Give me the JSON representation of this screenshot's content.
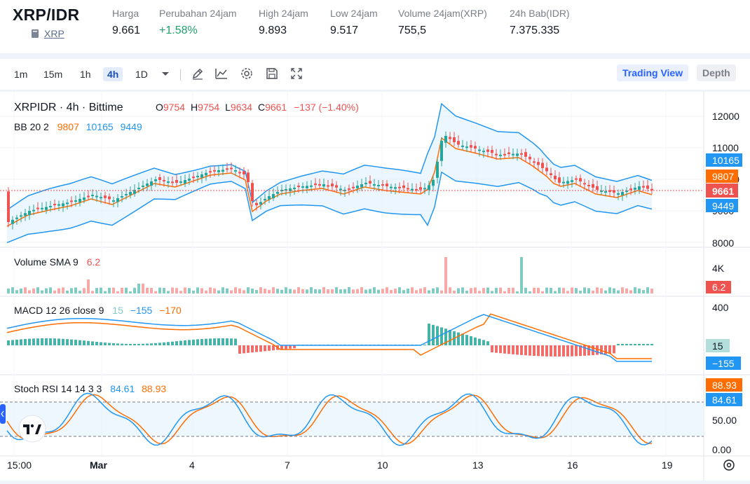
{
  "pair": "XRP/IDR",
  "coin_link": "XRP",
  "stats": [
    {
      "label": "Harga",
      "value": "9.661",
      "color": "default"
    },
    {
      "label": "Perubahan 24jam",
      "value": "+1.58%",
      "color": "green"
    },
    {
      "label": "High 24jam",
      "value": "9.893",
      "color": "default"
    },
    {
      "label": "Low 24jam",
      "value": "9.517",
      "color": "default"
    },
    {
      "label": "Volume 24jam(XRP)",
      "value": "755,5",
      "color": "default"
    },
    {
      "label": "24h Bab(IDR)",
      "value": "7.375.335",
      "color": "default"
    }
  ],
  "toolbar": {
    "timeframes": [
      "1m",
      "15m",
      "1h",
      "4h",
      "1D"
    ],
    "active_timeframe": "4h",
    "icons": [
      "pencil-icon",
      "line-chart-icon",
      "gear-icon",
      "save-icon",
      "fullscreen-icon"
    ],
    "views": [
      "Trading View",
      "Depth"
    ],
    "active_view": "Trading View"
  },
  "chart": {
    "title": "XRPIDR · 4h · Bittime",
    "ohlc": {
      "o_label": "O",
      "o": "9754",
      "h_label": "H",
      "h": "9754",
      "l_label": "L",
      "l": "9634",
      "c_label": "C",
      "c": "9661",
      "change": "−137 (−1.40%)"
    },
    "bb": {
      "label": "BB 20 2",
      "basis": "9807",
      "upper": "10165",
      "lower": "9449"
    },
    "price_axis": [
      "12000",
      "11000",
      "10000",
      "9000",
      "8000"
    ],
    "price_tags": {
      "upper": "10165",
      "basis": "9807",
      "last": "9661",
      "lower": "9449"
    },
    "volume": {
      "label": "Volume SMA 9",
      "value": "6.2",
      "axis_label": "4K",
      "tag": "6.2"
    },
    "macd": {
      "label": "MACD 12 26 close 9",
      "hist": "15",
      "macd": "−155",
      "signal": "−170",
      "axis_label": "400",
      "tag_hist": "15",
      "tag_macd": "−155"
    },
    "stoch": {
      "label": "Stoch RSI 14 14 3 3",
      "k": "84.61",
      "d": "88.93",
      "axis_labels": [
        "50.00",
        "0.00"
      ],
      "tag_d": "88.93",
      "tag_k": "84.61"
    },
    "time_axis": [
      "15:00",
      "Mar",
      "4",
      "7",
      "10",
      "13",
      "16",
      "19"
    ]
  },
  "colors": {
    "up": "#26a69a",
    "down": "#ef5350",
    "bb": "#2196f3",
    "basis": "#ff6d00",
    "accent": "#2962ff"
  }
}
